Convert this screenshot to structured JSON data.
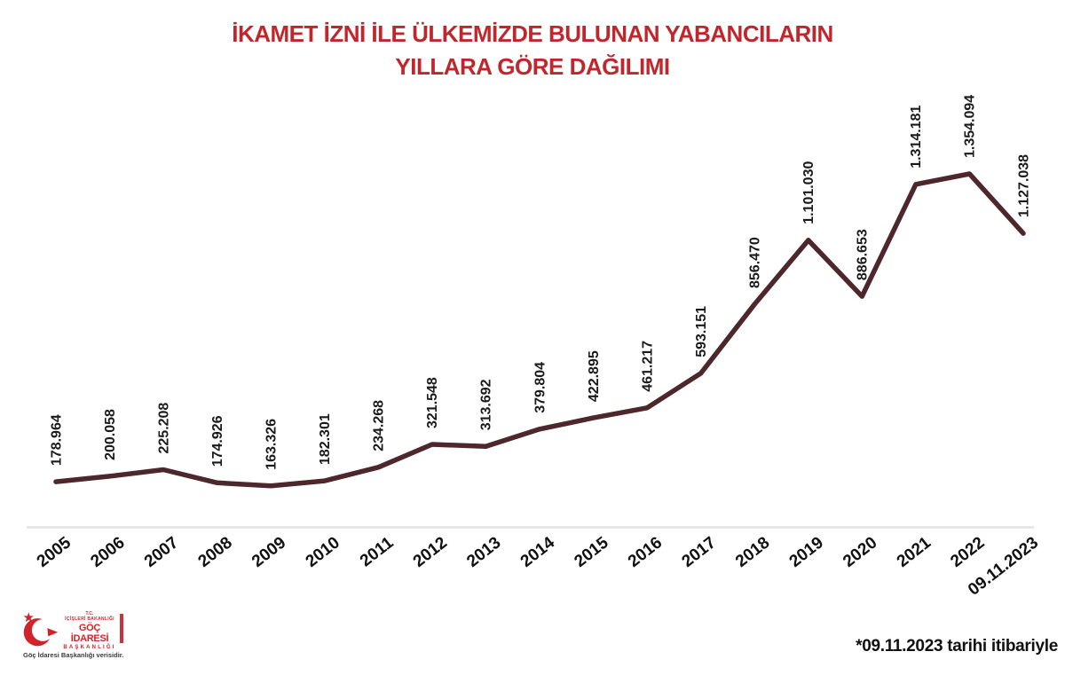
{
  "title": {
    "line1": "İKAMET İZNİ İLE ÜLKEMİZDE BULUNAN YABANCILARIN",
    "line2": "YILLARA GÖRE DAĞILIMI"
  },
  "chart_data": {
    "type": "line",
    "title": "İKAMET İZNİ İLE ÜLKEMİZDE BULUNAN YABANCILARIN YILLARA GÖRE DAĞILIMI",
    "categories": [
      "2005",
      "2006",
      "2007",
      "2008",
      "2009",
      "2010",
      "2011",
      "2012",
      "2013",
      "2014",
      "2015",
      "2016",
      "2017",
      "2018",
      "2019",
      "2020",
      "2021",
      "2022",
      "09.11.2023"
    ],
    "values": [
      178964,
      200058,
      225208,
      174926,
      163326,
      182301,
      234268,
      321548,
      313692,
      379804,
      422895,
      461217,
      593151,
      856470,
      1101030,
      886653,
      1314181,
      1354094,
      1127038
    ],
    "value_labels": [
      "178.964",
      "200.058",
      "225.208",
      "174.926",
      "163.326",
      "182.301",
      "234.268",
      "321.548",
      "313.692",
      "379.804",
      "422.895",
      "461.217",
      "593.151",
      "856.470",
      "1.101.030",
      "886.653",
      "1.314.181",
      "1.354.094",
      "1.127.038"
    ],
    "xlabel": "",
    "ylabel": "",
    "ylim": [
      0,
      1400000
    ],
    "grid": false,
    "legend": false,
    "line_color": "#4d272b",
    "label_color": "#1a1a1a",
    "axis_band_color": "#e7e7e7"
  },
  "logo": {
    "tc": "T.C.",
    "ministry": "İÇİŞLERİ BAKANLIĞI",
    "agency_line1": "GÖÇ İDARESİ",
    "agency_line2": "BAŞKANLIĞI",
    "caption": "Göç İdaresi Başkanlığı verisidir."
  },
  "footnote": "*09.11.2023 tarihi itibariyle",
  "colors": {
    "title_red": "#c0262c",
    "line_maroon": "#4d272b",
    "logo_red": "#d1242a"
  }
}
